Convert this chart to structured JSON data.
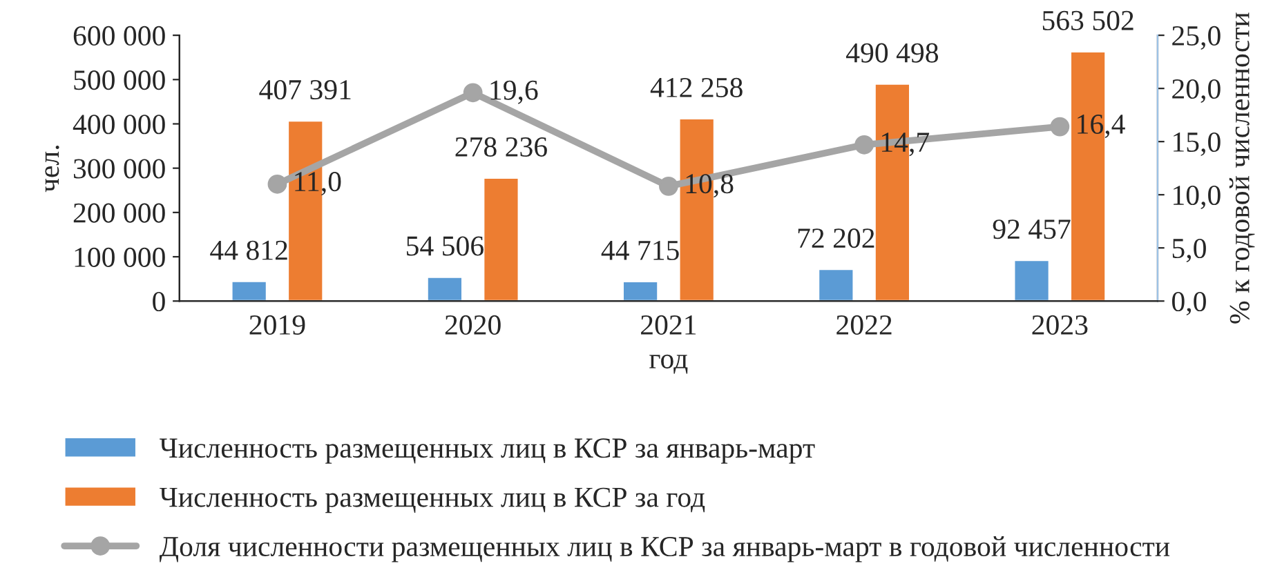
{
  "chart_data": {
    "type": "bar",
    "categories": [
      "2019",
      "2020",
      "2021",
      "2022",
      "2023"
    ],
    "xlabel": "год",
    "ylabel": "чел.",
    "y2label": "% к годовой численности",
    "ylim": [
      0,
      600000
    ],
    "yticks": [
      {
        "value": 0,
        "label": "0"
      },
      {
        "value": 100000,
        "label": "100 000"
      },
      {
        "value": 200000,
        "label": "200 000"
      },
      {
        "value": 300000,
        "label": "300 000"
      },
      {
        "value": 400000,
        "label": "400 000"
      },
      {
        "value": 500000,
        "label": "500 000"
      },
      {
        "value": 600000,
        "label": "600 000"
      }
    ],
    "y2lim": [
      0,
      25
    ],
    "y2ticks": [
      {
        "value": 0,
        "label": "0,0"
      },
      {
        "value": 5,
        "label": "5,0"
      },
      {
        "value": 10,
        "label": "10,0"
      },
      {
        "value": 15,
        "label": "15,0"
      },
      {
        "value": 20,
        "label": "20,0"
      },
      {
        "value": 25,
        "label": "25,0"
      }
    ],
    "legend": "bottom",
    "series": [
      {
        "name": "Численность размещенных лиц в КСР за январь-март",
        "color": "#5b9bd5",
        "values": [
          44812,
          54506,
          44715,
          72202,
          92457
        ],
        "value_labels": [
          "44 812",
          "54 506",
          "44 715",
          "72 202",
          "92 457"
        ]
      },
      {
        "name": "Численность размещенных лиц в КСР за год",
        "color": "#ed7d31",
        "values": [
          407391,
          278236,
          412258,
          490498,
          563502
        ],
        "value_labels": [
          "407 391",
          "278 236",
          "412 258",
          "490 498",
          "563 502"
        ]
      },
      {
        "name": "Доля численности размещенных лиц в КСР за январь-март в годовой численности",
        "type": "line",
        "axis": "y2",
        "marker": "circle",
        "color": "#a5a5a5",
        "values": [
          11.0,
          19.6,
          10.8,
          14.7,
          16.4
        ],
        "value_labels": [
          "11,0",
          "19,6",
          "10,8",
          "14,7",
          "16,4"
        ]
      }
    ]
  }
}
